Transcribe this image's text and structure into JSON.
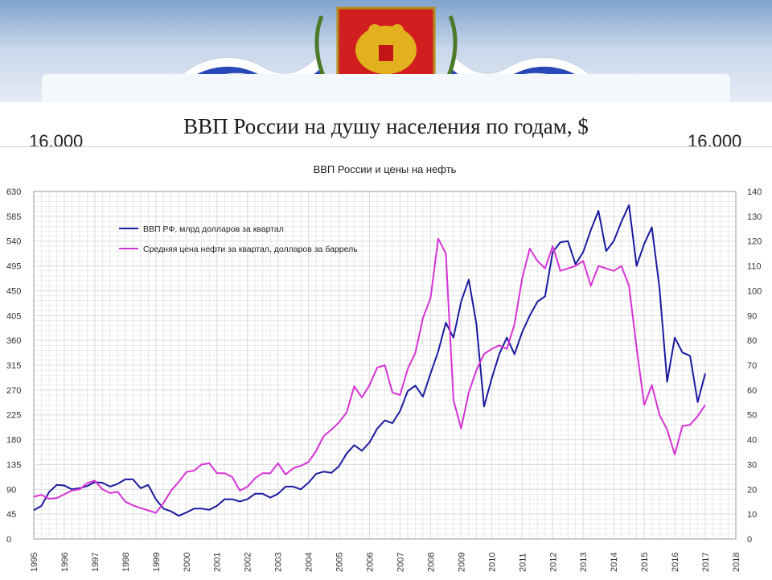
{
  "slide": {
    "title": "ВВП России на душу населения по годам, $",
    "left_number": "16.000",
    "right_number": "16.000"
  },
  "colors": {
    "gdp": "#1a1aa0",
    "oil": "#d633d6",
    "grid": "#dcdcdc",
    "axis_text": "#333333"
  },
  "chart_data": {
    "type": "line",
    "title": "ВВП России и цены на нефть",
    "x_ticks": [
      "1995",
      "1996",
      "1997",
      "1998",
      "1999",
      "2000",
      "2001",
      "2002",
      "2003",
      "2004",
      "2005",
      "2006",
      "2007",
      "2008",
      "2009",
      "2010",
      "2011",
      "2012",
      "2013",
      "2014",
      "2015",
      "2016",
      "2017",
      "2018"
    ],
    "xlim": [
      1995.0,
      2018.0
    ],
    "y_left": {
      "lim": [
        0,
        630
      ],
      "ticks": [
        "0",
        "45",
        "90",
        "135",
        "180",
        "225",
        "270",
        "315",
        "360",
        "405",
        "450",
        "495",
        "540",
        "585",
        "630"
      ]
    },
    "y_right": {
      "lim": [
        0,
        140
      ],
      "ticks": [
        "0",
        "10",
        "20",
        "30",
        "40",
        "50",
        "60",
        "70",
        "80",
        "90",
        "100",
        "110",
        "120",
        "130",
        "140"
      ]
    },
    "grid": true,
    "legend_position": "top-left",
    "series": [
      {
        "name": "ВВП РФ, млрд долларов за квартал",
        "axis": "left",
        "points": [
          [
            1995.0,
            52
          ],
          [
            1995.25,
            60
          ],
          [
            1995.5,
            85
          ],
          [
            1995.75,
            98
          ],
          [
            1996.0,
            97
          ],
          [
            1996.25,
            90
          ],
          [
            1996.5,
            92
          ],
          [
            1996.75,
            96
          ],
          [
            1997.0,
            103
          ],
          [
            1997.25,
            102
          ],
          [
            1997.5,
            95
          ],
          [
            1997.75,
            100
          ],
          [
            1998.0,
            108
          ],
          [
            1998.25,
            108
          ],
          [
            1998.5,
            92
          ],
          [
            1998.75,
            98
          ],
          [
            1999.0,
            72
          ],
          [
            1999.25,
            55
          ],
          [
            1999.5,
            50
          ],
          [
            1999.75,
            42
          ],
          [
            2000.0,
            48
          ],
          [
            2000.25,
            55
          ],
          [
            2000.5,
            55
          ],
          [
            2000.75,
            53
          ],
          [
            2001.0,
            60
          ],
          [
            2001.25,
            72
          ],
          [
            2001.5,
            72
          ],
          [
            2001.75,
            68
          ],
          [
            2002.0,
            72
          ],
          [
            2002.25,
            82
          ],
          [
            2002.5,
            82
          ],
          [
            2002.75,
            75
          ],
          [
            2003.0,
            82
          ],
          [
            2003.25,
            95
          ],
          [
            2003.5,
            95
          ],
          [
            2003.75,
            90
          ],
          [
            2004.0,
            102
          ],
          [
            2004.25,
            118
          ],
          [
            2004.5,
            122
          ],
          [
            2004.75,
            120
          ],
          [
            2005.0,
            132
          ],
          [
            2005.25,
            155
          ],
          [
            2005.5,
            170
          ],
          [
            2005.75,
            160
          ],
          [
            2006.0,
            175
          ],
          [
            2006.25,
            200
          ],
          [
            2006.5,
            215
          ],
          [
            2006.75,
            210
          ],
          [
            2007.0,
            232
          ],
          [
            2007.25,
            268
          ],
          [
            2007.5,
            278
          ],
          [
            2007.75,
            258
          ],
          [
            2008.0,
            300
          ],
          [
            2008.25,
            340
          ],
          [
            2008.5,
            392
          ],
          [
            2008.75,
            365
          ],
          [
            2009.0,
            430
          ],
          [
            2009.25,
            470
          ],
          [
            2009.5,
            390
          ],
          [
            2009.75,
            240
          ],
          [
            2010.0,
            290
          ],
          [
            2010.25,
            335
          ],
          [
            2010.5,
            365
          ],
          [
            2010.75,
            335
          ],
          [
            2011.0,
            375
          ],
          [
            2011.25,
            405
          ],
          [
            2011.5,
            430
          ],
          [
            2011.75,
            440
          ],
          [
            2012.0,
            520
          ],
          [
            2012.25,
            538
          ],
          [
            2012.5,
            540
          ],
          [
            2012.75,
            498
          ],
          [
            2013.0,
            520
          ],
          [
            2013.25,
            560
          ],
          [
            2013.5,
            595
          ],
          [
            2013.75,
            522
          ],
          [
            2014.0,
            540
          ],
          [
            2014.25,
            575
          ],
          [
            2014.5,
            605
          ],
          [
            2014.75,
            495
          ],
          [
            2015.0,
            535
          ],
          [
            2015.25,
            565
          ],
          [
            2015.5,
            455
          ],
          [
            2015.75,
            285
          ],
          [
            2016.0,
            365
          ],
          [
            2016.25,
            338
          ],
          [
            2016.5,
            332
          ],
          [
            2016.75,
            248
          ],
          [
            2017.0,
            300
          ]
        ]
      },
      {
        "name": "Средняя цена нефти за квартал, долларов за баррель",
        "axis": "right",
        "points": [
          [
            1995.0,
            17
          ],
          [
            1995.25,
            17.8
          ],
          [
            1995.5,
            16.2
          ],
          [
            1995.75,
            16.5
          ],
          [
            1996.0,
            18
          ],
          [
            1996.25,
            19.5
          ],
          [
            1996.5,
            20
          ],
          [
            1996.75,
            22.5
          ],
          [
            1997.0,
            23.5
          ],
          [
            1997.25,
            20
          ],
          [
            1997.5,
            18.5
          ],
          [
            1997.75,
            19
          ],
          [
            1998.0,
            15
          ],
          [
            1998.25,
            13.5
          ],
          [
            1998.5,
            12.5
          ],
          [
            1998.75,
            11.5
          ],
          [
            1999.0,
            10.5
          ],
          [
            1999.25,
            14.5
          ],
          [
            1999.5,
            19.5
          ],
          [
            1999.75,
            23
          ],
          [
            2000.0,
            27
          ],
          [
            2000.25,
            27.5
          ],
          [
            2000.5,
            30
          ],
          [
            2000.75,
            30.5
          ],
          [
            2001.0,
            26.5
          ],
          [
            2001.25,
            26.5
          ],
          [
            2001.5,
            25
          ],
          [
            2001.75,
            19.5
          ],
          [
            2002.0,
            21
          ],
          [
            2002.25,
            24.5
          ],
          [
            2002.5,
            26.5
          ],
          [
            2002.75,
            26.5
          ],
          [
            2003.0,
            30.5
          ],
          [
            2003.25,
            26
          ],
          [
            2003.5,
            28.5
          ],
          [
            2003.75,
            29.5
          ],
          [
            2004.0,
            31
          ],
          [
            2004.25,
            35.5
          ],
          [
            2004.5,
            41.5
          ],
          [
            2004.75,
            44
          ],
          [
            2005.0,
            47
          ],
          [
            2005.25,
            51
          ],
          [
            2005.5,
            61.5
          ],
          [
            2005.75,
            57
          ],
          [
            2006.0,
            62
          ],
          [
            2006.25,
            69
          ],
          [
            2006.5,
            70
          ],
          [
            2006.75,
            59
          ],
          [
            2007.0,
            58
          ],
          [
            2007.25,
            68.5
          ],
          [
            2007.5,
            75
          ],
          [
            2007.75,
            89
          ],
          [
            2008.0,
            97
          ],
          [
            2008.25,
            121
          ],
          [
            2008.5,
            115
          ],
          [
            2008.75,
            56
          ],
          [
            2009.0,
            44.5
          ],
          [
            2009.25,
            59
          ],
          [
            2009.5,
            68
          ],
          [
            2009.75,
            74.5
          ],
          [
            2010.0,
            76.5
          ],
          [
            2010.25,
            78
          ],
          [
            2010.5,
            76.5
          ],
          [
            2010.75,
            86.5
          ],
          [
            2011.0,
            105
          ],
          [
            2011.25,
            117
          ],
          [
            2011.5,
            112
          ],
          [
            2011.75,
            109
          ],
          [
            2012.0,
            118
          ],
          [
            2012.25,
            108
          ],
          [
            2012.5,
            109
          ],
          [
            2012.75,
            110
          ],
          [
            2013.0,
            112
          ],
          [
            2013.25,
            102
          ],
          [
            2013.5,
            110
          ],
          [
            2013.75,
            109
          ],
          [
            2014.0,
            108
          ],
          [
            2014.25,
            110
          ],
          [
            2014.5,
            102
          ],
          [
            2014.75,
            77
          ],
          [
            2015.0,
            54
          ],
          [
            2015.25,
            62
          ],
          [
            2015.5,
            50
          ],
          [
            2015.75,
            44
          ],
          [
            2016.0,
            34
          ],
          [
            2016.25,
            45.5
          ],
          [
            2016.5,
            46
          ],
          [
            2016.75,
            49.5
          ],
          [
            2017.0,
            54
          ]
        ]
      }
    ]
  }
}
